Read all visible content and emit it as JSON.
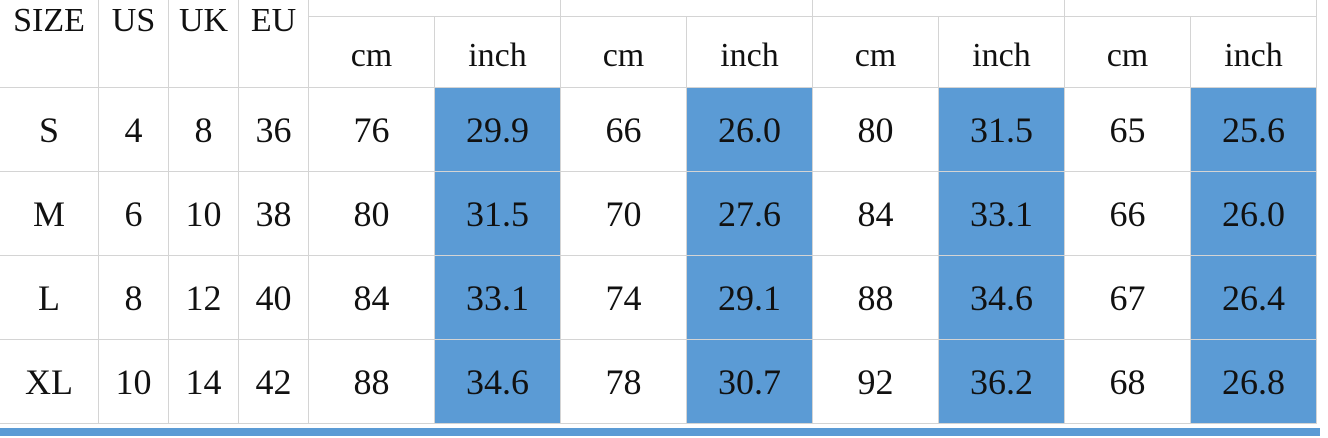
{
  "table": {
    "header": [
      "SIZE",
      "US",
      "UK",
      "EU"
    ],
    "units": [
      "cm",
      "inch",
      "cm",
      "inch",
      "cm",
      "inch",
      "cm",
      "inch"
    ],
    "rows": [
      [
        "S",
        "4",
        "8",
        "36",
        "76",
        "29.9",
        "66",
        "26.0",
        "80",
        "31.5",
        "65",
        "25.6"
      ],
      [
        "M",
        "6",
        "10",
        "38",
        "80",
        "31.5",
        "70",
        "27.6",
        "84",
        "33.1",
        "66",
        "26.0"
      ],
      [
        "L",
        "8",
        "12",
        "40",
        "84",
        "33.1",
        "74",
        "29.1",
        "88",
        "34.6",
        "67",
        "26.4"
      ],
      [
        "XL",
        "10",
        "14",
        "42",
        "88",
        "34.6",
        "78",
        "30.7",
        "92",
        "36.2",
        "68",
        "26.8"
      ]
    ]
  }
}
